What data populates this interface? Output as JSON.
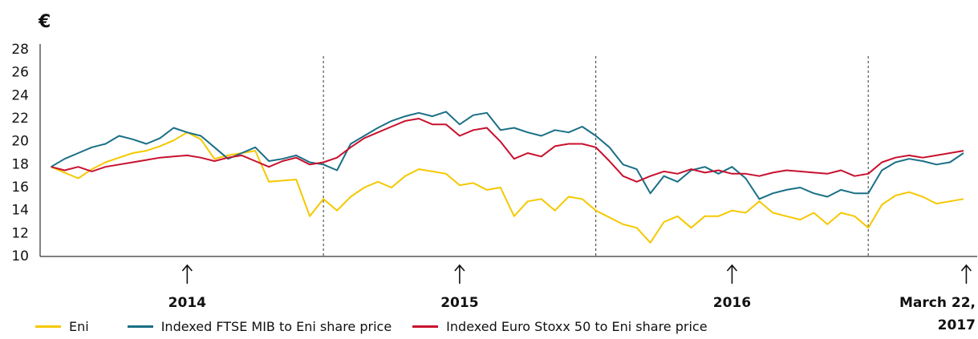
{
  "chart_data": {
    "type": "line",
    "ylabel": "€",
    "x": [
      2014.0,
      2014.05,
      2014.1,
      2014.15,
      2014.2,
      2014.25,
      2014.3,
      2014.35,
      2014.4,
      2014.45,
      2014.5,
      2014.55,
      2014.6,
      2014.65,
      2014.7,
      2014.75,
      2014.8,
      2014.85,
      2014.9,
      2014.95,
      2015.0,
      2015.05,
      2015.1,
      2015.15,
      2015.2,
      2015.25,
      2015.3,
      2015.35,
      2015.4,
      2015.45,
      2015.5,
      2015.55,
      2015.6,
      2015.65,
      2015.7,
      2015.75,
      2015.8,
      2015.85,
      2015.9,
      2015.95,
      2016.0,
      2016.05,
      2016.1,
      2016.15,
      2016.2,
      2016.25,
      2016.3,
      2016.35,
      2016.4,
      2016.45,
      2016.5,
      2016.55,
      2016.6,
      2016.65,
      2016.7,
      2016.75,
      2016.8,
      2016.85,
      2016.9,
      2016.95,
      2017.0,
      2017.05,
      2017.1,
      2017.15,
      2017.2,
      2017.25,
      2017.3,
      2017.35
    ],
    "series": [
      {
        "name": "Eni",
        "color": "#f5c800",
        "values": [
          17.8,
          17.3,
          16.8,
          17.6,
          18.2,
          18.6,
          19.0,
          19.2,
          19.6,
          20.1,
          20.8,
          20.2,
          18.5,
          18.8,
          19.0,
          19.2,
          16.5,
          16.6,
          16.7,
          13.5,
          15.0,
          14.0,
          15.2,
          16.0,
          16.5,
          16.0,
          17.0,
          17.6,
          17.4,
          17.2,
          16.2,
          16.4,
          15.8,
          16.0,
          13.5,
          14.8,
          15.0,
          14.0,
          15.2,
          15.0,
          14.0,
          13.4,
          12.8,
          12.5,
          11.2,
          13.0,
          13.5,
          12.5,
          13.5,
          13.5,
          14.0,
          13.8,
          14.8,
          13.8,
          13.5,
          13.2,
          13.8,
          12.8,
          13.8,
          13.5,
          12.5,
          14.5,
          15.3,
          15.6,
          15.2,
          14.6,
          14.8,
          15.0
        ]
      },
      {
        "name": "Indexed FTSE MIB to Eni share price",
        "color": "#1a6f86",
        "values": [
          17.8,
          18.5,
          19.0,
          19.5,
          19.8,
          20.5,
          20.2,
          19.8,
          20.3,
          21.2,
          20.8,
          20.5,
          19.5,
          18.5,
          19.0,
          19.5,
          18.3,
          18.5,
          18.8,
          18.2,
          18.0,
          17.5,
          19.8,
          20.5,
          21.2,
          21.8,
          22.2,
          22.5,
          22.2,
          22.6,
          21.5,
          22.3,
          22.5,
          21.0,
          21.2,
          20.8,
          20.5,
          21.0,
          20.8,
          21.3,
          20.5,
          19.5,
          18.0,
          17.6,
          15.5,
          17.0,
          16.5,
          17.5,
          17.8,
          17.2,
          17.8,
          16.8,
          15.0,
          15.5,
          15.8,
          16.0,
          15.5,
          15.2,
          15.8,
          15.5,
          15.5,
          17.5,
          18.2,
          18.5,
          18.3,
          18.0,
          18.2,
          19.0
        ]
      },
      {
        "name": "Indexed Euro Stoxx 50 to Eni share price",
        "color": "#c8102e",
        "values": [
          17.8,
          17.5,
          17.8,
          17.4,
          17.8,
          18.0,
          18.2,
          18.4,
          18.6,
          18.7,
          18.8,
          18.6,
          18.3,
          18.6,
          18.8,
          18.3,
          17.8,
          18.3,
          18.6,
          18.0,
          18.2,
          18.6,
          19.5,
          20.3,
          20.8,
          21.3,
          21.8,
          22.0,
          21.5,
          21.5,
          20.5,
          21.0,
          21.2,
          20.0,
          18.5,
          19.0,
          18.7,
          19.6,
          19.8,
          19.8,
          19.5,
          18.3,
          17.0,
          16.5,
          17.0,
          17.4,
          17.2,
          17.6,
          17.3,
          17.5,
          17.2,
          17.2,
          17.0,
          17.3,
          17.5,
          17.4,
          17.3,
          17.2,
          17.5,
          17.0,
          17.2,
          18.2,
          18.6,
          18.8,
          18.6,
          18.8,
          19.0,
          19.2
        ]
      }
    ],
    "xlim": [
      2013.96,
      2017.4
    ],
    "xticks": [
      {
        "value": 2014.5,
        "label": "2014"
      },
      {
        "value": 2015.5,
        "label": "2015"
      },
      {
        "value": 2016.5,
        "label": "2016"
      },
      {
        "value": 2017.36,
        "label": "March 22, 2017"
      }
    ],
    "xdividers": [
      2015,
      2016,
      2017
    ],
    "ylim": [
      10,
      28
    ],
    "yticks": [
      10,
      12,
      14,
      16,
      18,
      20,
      22,
      24,
      26,
      28
    ],
    "legend": "bottom"
  }
}
